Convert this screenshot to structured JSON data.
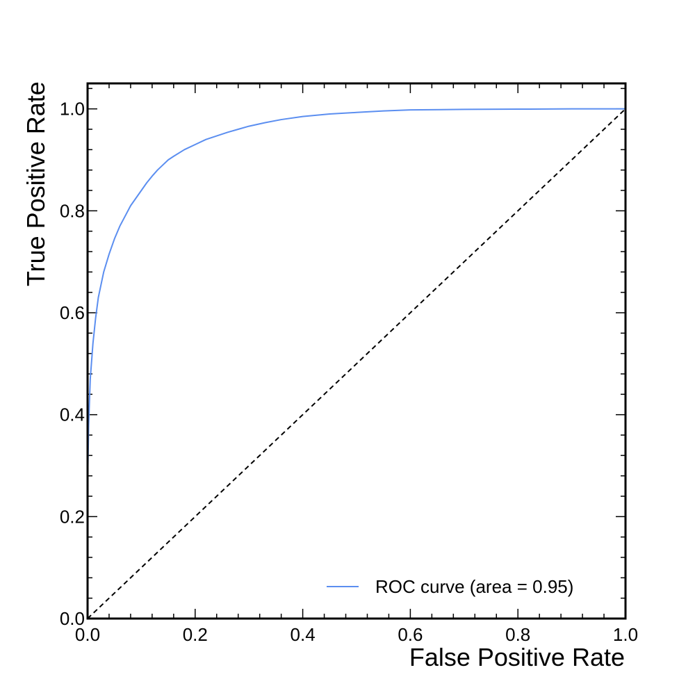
{
  "chart_data": {
    "type": "line",
    "xlabel": "False Positive Rate",
    "ylabel": "True Positive Rate",
    "xlim": [
      0.0,
      1.0
    ],
    "ylim": [
      0.0,
      1.05
    ],
    "x_ticks": [
      "0.0",
      "0.2",
      "0.4",
      "0.6",
      "0.8",
      "1.0"
    ],
    "y_ticks": [
      "0.0",
      "0.2",
      "0.4",
      "0.6",
      "0.8",
      "1.0"
    ],
    "grid": false,
    "legend_position": "bottom-right",
    "series": [
      {
        "name": "ROC curve (area = 0.95)",
        "color": "#5b8ef0",
        "line_style": "solid",
        "x": [
          0.0,
          0.0,
          0.002,
          0.005,
          0.01,
          0.015,
          0.02,
          0.03,
          0.04,
          0.05,
          0.06,
          0.07,
          0.08,
          0.09,
          0.1,
          0.11,
          0.12,
          0.13,
          0.14,
          0.15,
          0.16,
          0.18,
          0.2,
          0.22,
          0.24,
          0.26,
          0.28,
          0.3,
          0.33,
          0.36,
          0.4,
          0.45,
          0.5,
          0.55,
          0.6,
          0.7,
          0.8,
          0.9,
          1.0
        ],
        "y": [
          0.0,
          0.26,
          0.38,
          0.47,
          0.54,
          0.59,
          0.63,
          0.68,
          0.715,
          0.745,
          0.77,
          0.79,
          0.81,
          0.825,
          0.84,
          0.855,
          0.868,
          0.88,
          0.89,
          0.9,
          0.907,
          0.92,
          0.93,
          0.94,
          0.947,
          0.954,
          0.96,
          0.966,
          0.973,
          0.979,
          0.985,
          0.99,
          0.993,
          0.996,
          0.998,
          0.999,
          0.9995,
          1.0,
          1.0
        ]
      },
      {
        "color": "#000000",
        "line_style": "dashed",
        "x": [
          0.0,
          1.0
        ],
        "y": [
          0.0,
          1.0
        ]
      }
    ]
  }
}
